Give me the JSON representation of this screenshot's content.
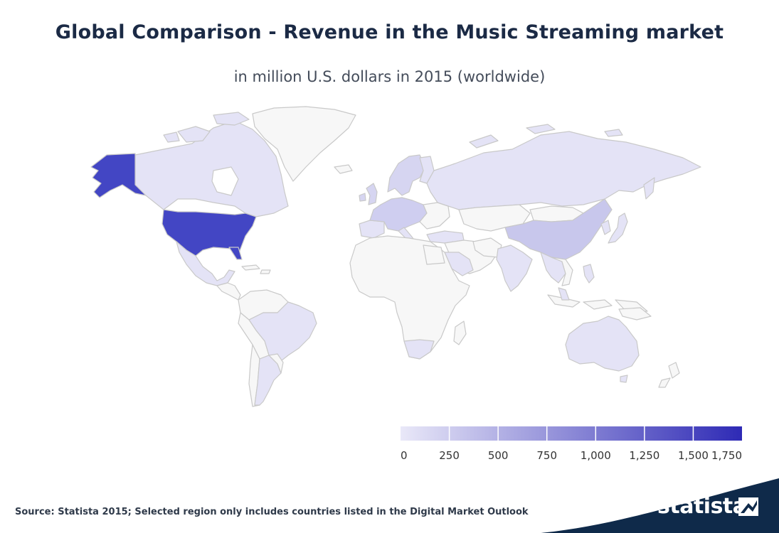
{
  "header": {
    "title": "Global Comparison - Revenue in the Music Streaming market",
    "subtitle": "in million U.S. dollars in 2015 (worldwide)"
  },
  "map": {
    "type": "choropleth",
    "colors": {
      "no_data": "#f7f7f7",
      "border": "#c9c9c9",
      "scale_min": "#e6e4f7",
      "scale_max": "#2e2ab5",
      "usa": "#4346c4",
      "china": "#c8c7ec",
      "light": "#e4e3f6",
      "mid_light": "#d6d5f1"
    },
    "regions": [
      {
        "id": "alaska",
        "level": "high"
      },
      {
        "id": "usa",
        "level": "high"
      },
      {
        "id": "canada",
        "level": "low"
      },
      {
        "id": "mexico",
        "level": "low"
      },
      {
        "id": "brazil",
        "level": "low"
      },
      {
        "id": "argentina",
        "level": "low"
      },
      {
        "id": "europe",
        "level": "low-mid"
      },
      {
        "id": "russia",
        "level": "low"
      },
      {
        "id": "china",
        "level": "mid"
      },
      {
        "id": "india",
        "level": "low"
      },
      {
        "id": "australia",
        "level": "low"
      },
      {
        "id": "japan",
        "level": "low"
      },
      {
        "id": "south-africa",
        "level": "low"
      }
    ]
  },
  "legend": {
    "ticks": [
      "0",
      "250",
      "500",
      "750",
      "1,000",
      "1,250",
      "1,500",
      "1,750"
    ],
    "min": 0,
    "max": 1750
  },
  "footer": {
    "source": "Source: Statista 2015; Selected region only includes countries listed in the Digital Market Outlook",
    "logo": "statista",
    "logo_color": "#0f2a4a"
  }
}
